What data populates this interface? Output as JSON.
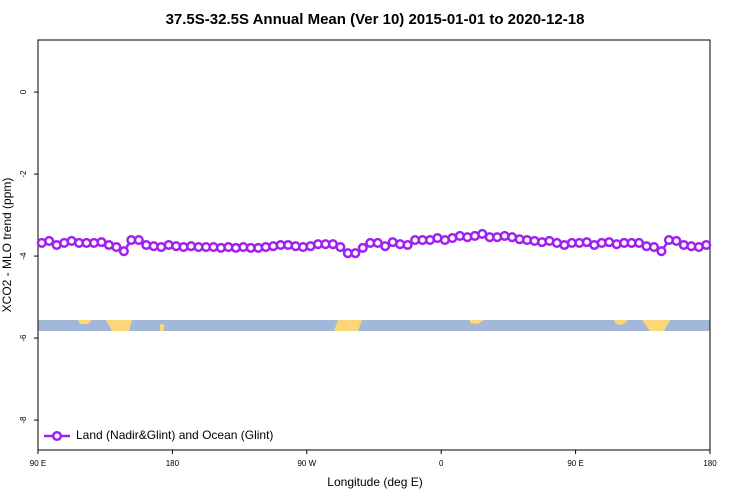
{
  "chart_data": {
    "type": "line",
    "title": "37.5S-32.5S Annual Mean (Ver 10)   2015-01-01 to 2020-12-18",
    "xlabel": "Longitude (deg E)",
    "ylabel": "XCO2 - MLO trend (ppm)",
    "xlim": [
      90,
      540
    ],
    "ylim": [
      -8.73,
      1.27
    ],
    "xticks": [
      {
        "value": 90,
        "label": "90 E"
      },
      180,
      {
        "value": 270,
        "label": "90 W"
      },
      {
        "value": 360,
        "label": "0"
      },
      {
        "value": 450,
        "label": "90 E"
      },
      {
        "value": 540,
        "label": "180"
      }
    ],
    "yticks": [
      0,
      -2,
      -4,
      -6,
      -8
    ],
    "grid": false,
    "legend": "lower left",
    "x": [
      92.5,
      97.5,
      102.5,
      107.5,
      112.5,
      117.5,
      122.5,
      127.5,
      132.5,
      137.5,
      142.5,
      147.5,
      152.5,
      157.5,
      162.5,
      167.5,
      172.5,
      177.5,
      182.5,
      187.5,
      192.5,
      197.5,
      202.5,
      207.5,
      212.5,
      217.5,
      222.5,
      227.5,
      232.5,
      237.5,
      242.5,
      247.5,
      252.5,
      257.5,
      262.5,
      267.5,
      272.5,
      277.5,
      282.5,
      287.5,
      292.5,
      297.5,
      302.5,
      307.5,
      312.5,
      317.5,
      322.5,
      327.5,
      332.5,
      337.5,
      342.5,
      347.5,
      352.5,
      357.5,
      362.5,
      367.5,
      372.5,
      377.5,
      382.5,
      387.5,
      392.5,
      397.5,
      402.5,
      407.5,
      412.5,
      417.5,
      422.5,
      427.5,
      432.5,
      437.5,
      442.5,
      447.5,
      452.5,
      457.5,
      462.5,
      467.5,
      472.5,
      477.5,
      482.5,
      487.5,
      492.5,
      497.5,
      502.5,
      507.5,
      512.5,
      517.5,
      522.5,
      527.5,
      532.5,
      537.5
    ],
    "series": [
      {
        "name": "Land (Nadir&Glint) and Ocean (Glint)",
        "color": "#a020f0",
        "values": [
          -3.68,
          -3.63,
          -3.73,
          -3.68,
          -3.63,
          -3.68,
          -3.68,
          -3.68,
          -3.66,
          -3.73,
          -3.78,
          -3.88,
          -3.61,
          -3.61,
          -3.73,
          -3.76,
          -3.78,
          -3.73,
          -3.76,
          -3.78,
          -3.76,
          -3.78,
          -3.78,
          -3.78,
          -3.8,
          -3.78,
          -3.8,
          -3.78,
          -3.8,
          -3.8,
          -3.78,
          -3.76,
          -3.73,
          -3.73,
          -3.76,
          -3.78,
          -3.76,
          -3.71,
          -3.71,
          -3.71,
          -3.78,
          -3.93,
          -3.93,
          -3.8,
          -3.68,
          -3.68,
          -3.76,
          -3.66,
          -3.71,
          -3.73,
          -3.61,
          -3.61,
          -3.61,
          -3.56,
          -3.61,
          -3.56,
          -3.51,
          -3.54,
          -3.51,
          -3.46,
          -3.54,
          -3.54,
          -3.51,
          -3.54,
          -3.59,
          -3.61,
          -3.63,
          -3.66,
          -3.63,
          -3.68,
          -3.73,
          -3.68,
          -3.68,
          -3.66,
          -3.73,
          -3.68,
          -3.66,
          -3.71,
          -3.68,
          -3.68,
          -3.68,
          -3.76,
          -3.78,
          -3.88,
          -3.61,
          -3.63,
          -3.73,
          -3.76,
          -3.78,
          -3.73
        ]
      }
    ]
  }
}
